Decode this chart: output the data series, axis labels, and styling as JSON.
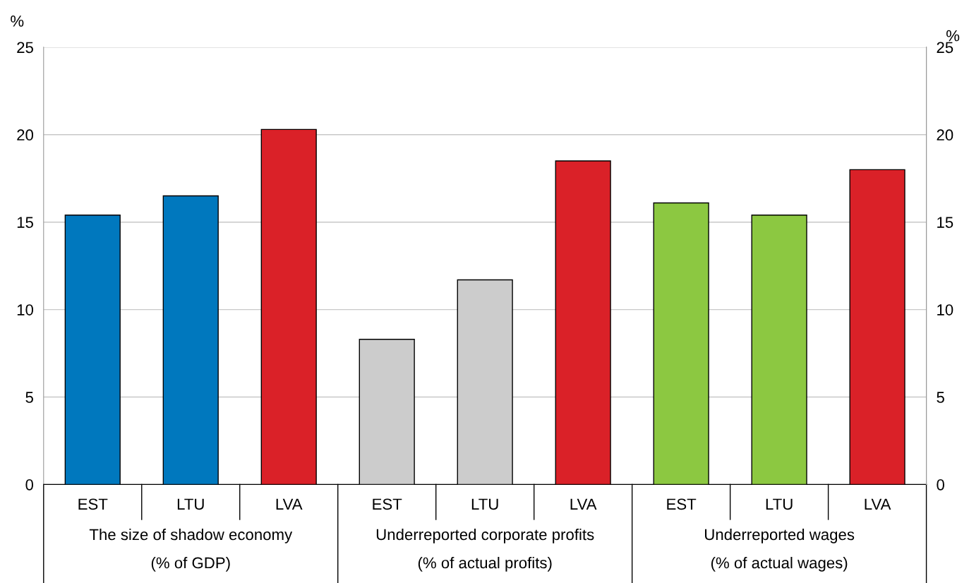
{
  "chart_data": {
    "type": "bar",
    "categories": [
      "EST",
      "LTU",
      "LVA",
      "EST",
      "LTU",
      "LVA",
      "EST",
      "LTU",
      "LVA"
    ],
    "values": [
      15.4,
      16.5,
      20.3,
      8.3,
      11.7,
      18.5,
      16.1,
      15.4,
      18.0
    ],
    "colors": [
      "#0078be",
      "#0078be",
      "#da2128",
      "#cccccc",
      "#cccccc",
      "#da2128",
      "#8cc841",
      "#8cc841",
      "#da2128"
    ],
    "ylabel": "%",
    "y2label": "%",
    "ylim": [
      0,
      25
    ],
    "yticks": [
      0,
      5,
      10,
      15,
      20,
      25
    ],
    "y2lim": [
      0,
      25
    ],
    "y2ticks": [
      0,
      5,
      10,
      15,
      20,
      25
    ],
    "grid": "y",
    "annotations": [
      "The size of shadow economy\n(% of GDP)",
      "Underreported corporate profits\n(% of actual profits)",
      "Underreported wages\n(% of actual wages)"
    ]
  }
}
